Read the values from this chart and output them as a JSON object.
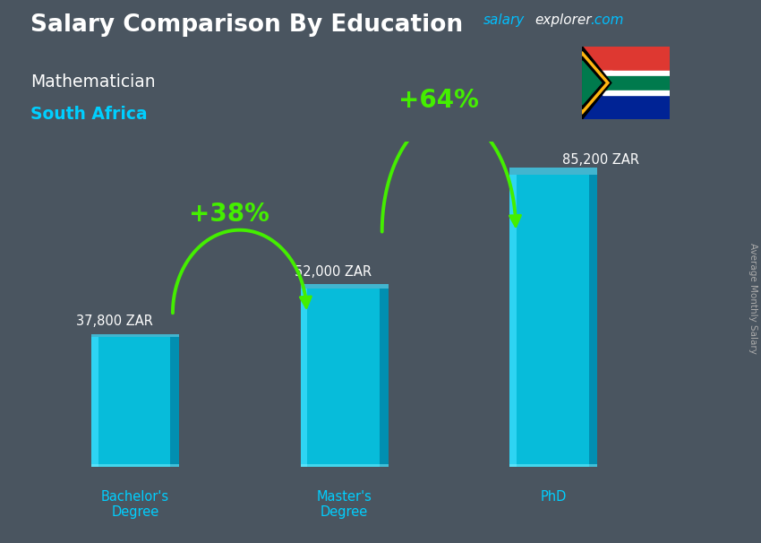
{
  "title": "Salary Comparison By Education",
  "subtitle": "Mathematician",
  "country": "South Africa",
  "categories": [
    "Bachelor's\nDegree",
    "Master's\nDegree",
    "PhD"
  ],
  "values": [
    37800,
    52000,
    85200
  ],
  "value_labels": [
    "37,800 ZAR",
    "52,000 ZAR",
    "85,200 ZAR"
  ],
  "bar_color_main": "#00C8E8",
  "bar_color_light": "#40DFFF",
  "bar_color_dark": "#0088AA",
  "bar_color_side": "#006688",
  "pct_labels": [
    "+38%",
    "+64%"
  ],
  "ylabel": "Average Monthly Salary",
  "background_color": "#4a5560",
  "title_color": "#ffffff",
  "subtitle_color": "#ffffff",
  "country_color": "#00CFFF",
  "arrow_color": "#44EE00",
  "value_label_color": "#ffffff",
  "category_label_color": "#00CFFF",
  "brand_salary_color": "#00BFFF",
  "brand_explorer_color": "#ffffff",
  "brand_dot_com_color": "#00BFFF",
  "ylabel_color": "#aaaaaa"
}
